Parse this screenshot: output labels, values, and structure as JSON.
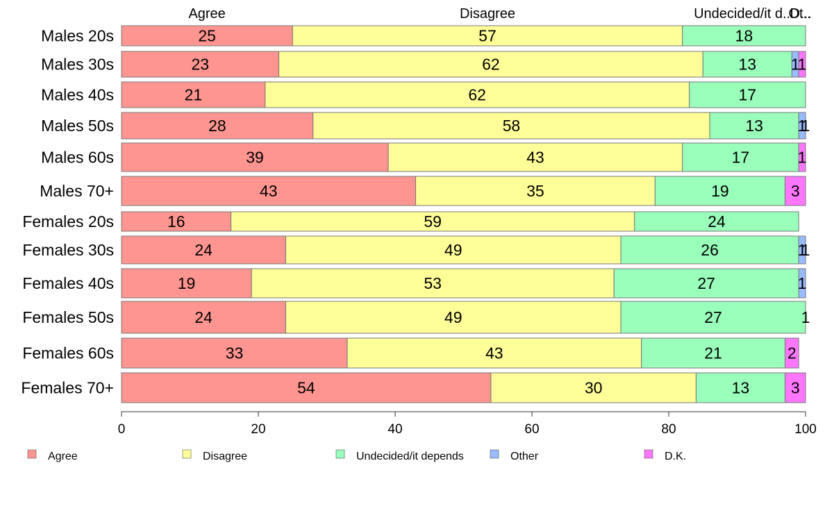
{
  "chart_data": {
    "type": "bar",
    "orientation": "horizontal",
    "stacked": true,
    "xlim": [
      0,
      100
    ],
    "x_ticks": [
      0,
      20,
      40,
      60,
      80,
      100
    ],
    "grid": false,
    "legend_position": "bottom",
    "top_labels": [
      "Agree",
      "Disagree",
      "Undecided/it d...",
      "Ot..",
      "D..."
    ],
    "categories": [
      "Males 20s",
      "Males 30s",
      "Males 40s",
      "Males 50s",
      "Males 60s",
      "Males 70+",
      "Females 20s",
      "Females 30s",
      "Females 40s",
      "Females 50s",
      "Females 60s",
      "Females 70+"
    ],
    "series": [
      {
        "name": "Agree",
        "color": "#ff9590",
        "values": [
          25,
          23,
          21,
          28,
          39,
          43,
          16,
          24,
          19,
          24,
          33,
          54
        ],
        "labels": [
          "25",
          "23",
          "21",
          "28",
          "39",
          "43",
          "16",
          "24",
          "19",
          "24",
          "33",
          "54"
        ]
      },
      {
        "name": "Disagree",
        "color": "#ffff99",
        "values": [
          57,
          62,
          62,
          58,
          43,
          35,
          59,
          49,
          53,
          49,
          43,
          30
        ],
        "labels": [
          "57",
          "62",
          "62",
          "58",
          "43",
          "35",
          "59",
          "49",
          "53",
          "49",
          "43",
          "30"
        ]
      },
      {
        "name": "Undecided/it depends",
        "color": "#99ffbb",
        "values": [
          18,
          13,
          17,
          13,
          17,
          19,
          24,
          26,
          27,
          27,
          21,
          13
        ],
        "labels": [
          "18",
          "13",
          "17",
          "13",
          "17",
          "19",
          "24",
          "26",
          "27",
          "27",
          "21",
          "13"
        ]
      },
      {
        "name": "Other",
        "color": "#99bbff",
        "values": [
          0,
          1,
          0,
          1,
          0,
          0,
          0,
          1,
          1,
          0,
          0,
          0
        ],
        "labels": [
          "",
          "1",
          "",
          "1",
          "",
          "",
          "",
          "1",
          "1",
          "",
          "",
          ""
        ]
      },
      {
        "name": "D.K.",
        "color": "#ff77ff",
        "values": [
          0,
          1,
          0,
          1,
          1,
          3,
          0,
          1,
          0,
          1,
          2,
          3
        ],
        "labels": [
          "",
          "1",
          "",
          "1",
          "1",
          "3",
          "",
          "1",
          "",
          "1",
          "2",
          "3"
        ]
      }
    ]
  }
}
